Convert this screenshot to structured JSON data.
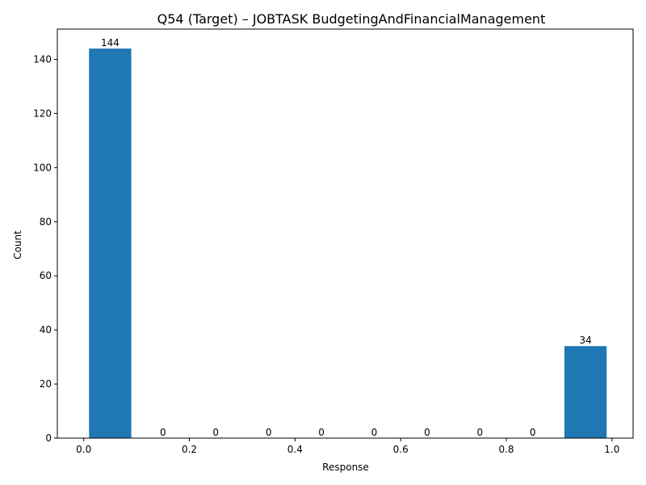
{
  "chart_data": {
    "type": "bar",
    "title": "Q54 (Target) – JOBTASK BudgetingAndFinancialManagement",
    "xlabel": "Response",
    "ylabel": "Count",
    "bins": [
      {
        "start": 0.0,
        "end": 0.1,
        "value": 144,
        "label": "144"
      },
      {
        "start": 0.1,
        "end": 0.2,
        "value": 0,
        "label": "0"
      },
      {
        "start": 0.2,
        "end": 0.3,
        "value": 0,
        "label": "0"
      },
      {
        "start": 0.3,
        "end": 0.4,
        "value": 0,
        "label": "0"
      },
      {
        "start": 0.4,
        "end": 0.5,
        "value": 0,
        "label": "0"
      },
      {
        "start": 0.5,
        "end": 0.6,
        "value": 0,
        "label": "0"
      },
      {
        "start": 0.6,
        "end": 0.7,
        "value": 0,
        "label": "0"
      },
      {
        "start": 0.7,
        "end": 0.8,
        "value": 0,
        "label": "0"
      },
      {
        "start": 0.8,
        "end": 0.9,
        "value": 0,
        "label": "0"
      },
      {
        "start": 0.9,
        "end": 1.0,
        "value": 34,
        "label": "34"
      }
    ],
    "xlim": [
      -0.05,
      1.04
    ],
    "ylim": [
      0,
      151.2
    ],
    "xticks": [
      0.0,
      0.2,
      0.4,
      0.6,
      0.8,
      1.0
    ],
    "xtick_labels": [
      "0.0",
      "0.2",
      "0.4",
      "0.6",
      "0.8",
      "1.0"
    ],
    "yticks": [
      0,
      20,
      40,
      60,
      80,
      100,
      120,
      140
    ],
    "ytick_labels": [
      "0",
      "20",
      "40",
      "60",
      "80",
      "100",
      "120",
      "140"
    ],
    "bar_color": "#1f77b4",
    "grid": false,
    "legend": "none"
  }
}
